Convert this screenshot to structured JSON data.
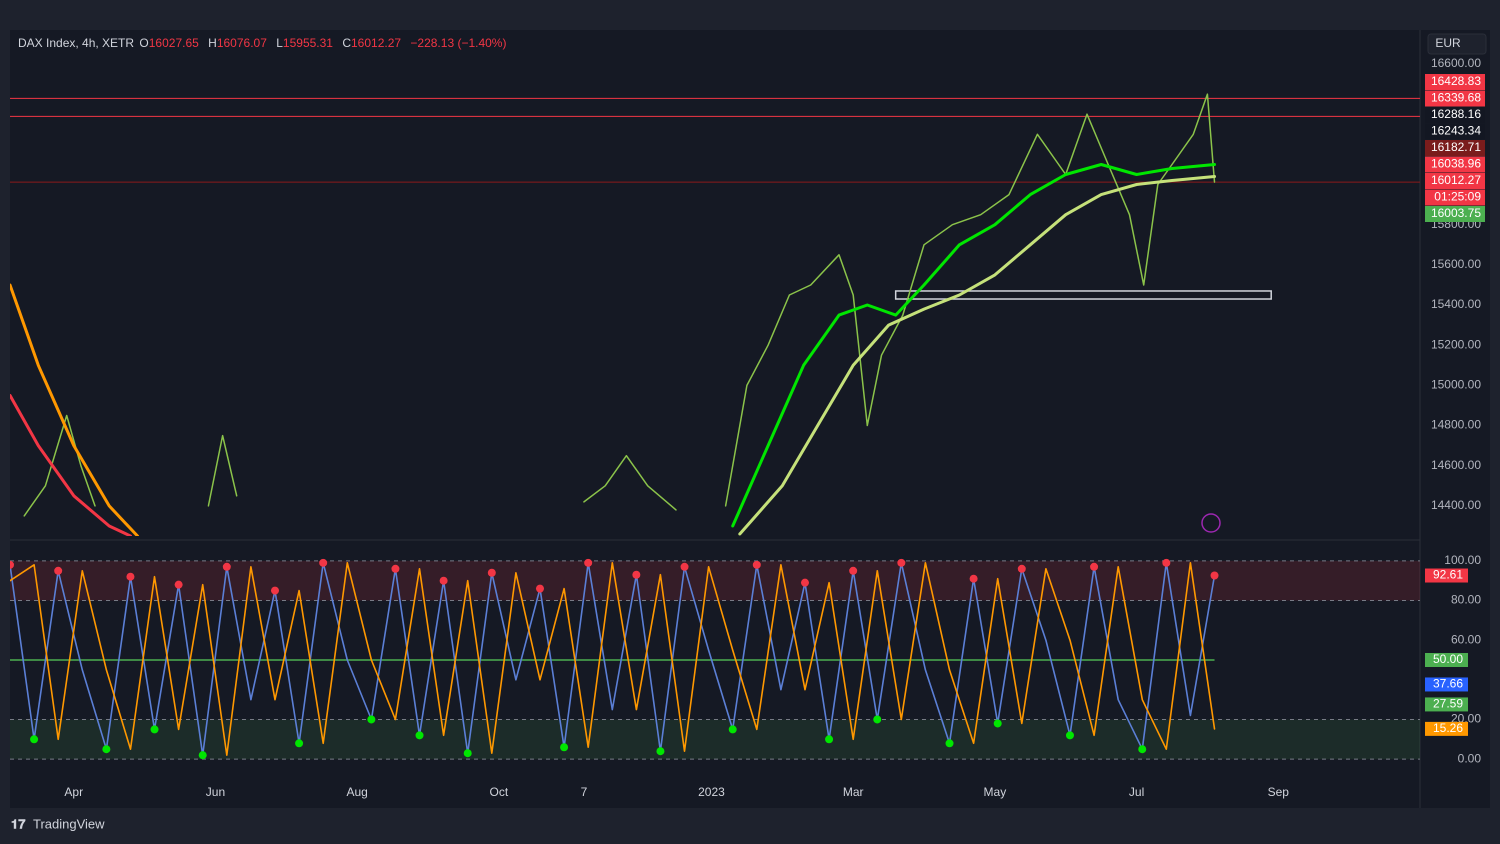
{
  "header": {
    "symbol": "DAX Index, 4h, XETR",
    "o_label": "O",
    "open": "16027.65",
    "h_label": "H",
    "high": "16076.07",
    "l_label": "L",
    "low": "15955.31",
    "c_label": "C",
    "close": "16012.27",
    "change": "−228.13 (−1.40%)"
  },
  "currency": "EUR",
  "footer": "TradingView",
  "chart_data": [
    {
      "type": "line",
      "xlim": [
        0.1,
        20
      ],
      "xticks": [
        {
          "value": 1,
          "label": "Apr"
        },
        {
          "value": 3,
          "label": "Jun"
        },
        {
          "value": 5,
          "label": "Aug"
        },
        {
          "value": 7,
          "label": "Oct"
        },
        {
          "value": 8.2,
          "label": "7"
        },
        {
          "value": 10,
          "label": "2023"
        },
        {
          "value": 12,
          "label": "Mar"
        },
        {
          "value": 14,
          "label": "May"
        },
        {
          "value": 16,
          "label": "Jul"
        },
        {
          "value": 18,
          "label": "Sep"
        }
      ],
      "ylim": [
        14250,
        16645
      ],
      "yticks": [
        {
          "value": 14400,
          "label": "14400.00"
        },
        {
          "value": 14600,
          "label": "14600.00"
        },
        {
          "value": 14800,
          "label": "14800.00"
        },
        {
          "value": 15000,
          "label": "15000.00"
        },
        {
          "value": 15200,
          "label": "15200.00"
        },
        {
          "value": 15400,
          "label": "15400.00"
        },
        {
          "value": 15600,
          "label": "15600.00"
        },
        {
          "value": 15800,
          "label": "15800.00"
        },
        {
          "value": 16600,
          "label": "16600.00"
        }
      ],
      "series": [
        {
          "color": "#8bc34a",
          "x": [
            0.3,
            0.6,
            0.9,
            1.1,
            1.3,
            1.5,
            2.9,
            3.1,
            3.3,
            3.5,
            8.2,
            8.5,
            8.8,
            9.1,
            9.5,
            9.8,
            10.2,
            10.5,
            10.8,
            11.1,
            11.4,
            11.8,
            12.0,
            12.2,
            12.4,
            12.7,
            13.0,
            13.4,
            13.8,
            14.2,
            14.6,
            15.0,
            15.3,
            15.6,
            15.9,
            16.1,
            16.3,
            16.5,
            16.8,
            17.0,
            17.1
          ],
          "values": [
            14350,
            14500,
            14850,
            14600,
            14400,
            null,
            14400,
            14750,
            14450,
            null,
            14420,
            14500,
            14650,
            14500,
            14380,
            null,
            14400,
            15000,
            15200,
            15450,
            15500,
            15650,
            15450,
            14800,
            15150,
            15350,
            15700,
            15800,
            15850,
            15950,
            16250,
            16050,
            16350,
            16100,
            15850,
            15500,
            16000,
            16100,
            16250,
            16450,
            16012.27
          ]
        },
        {
          "color": "#c5e17a",
          "x": [
            10.4,
            11,
            11.5,
            12,
            12.5,
            13,
            13.5,
            14,
            14.5,
            15,
            15.5,
            16,
            16.5,
            17.1
          ],
          "values": [
            14260,
            14500,
            14800,
            15100,
            15300,
            15380,
            15450,
            15550,
            15700,
            15850,
            15950,
            16000,
            16020,
            16040
          ]
        },
        {
          "color": "#00e600",
          "x": [
            10.3,
            10.8,
            11.3,
            11.8,
            12.2,
            12.6,
            13,
            13.5,
            14,
            14.5,
            15,
            15.5,
            16,
            16.5,
            17.1
          ],
          "values": [
            14300,
            14700,
            15100,
            15350,
            15400,
            15350,
            15500,
            15700,
            15800,
            15950,
            16050,
            16100,
            16050,
            16080,
            16100
          ]
        },
        {
          "color": "#ff9800",
          "x": [
            0.1,
            0.5,
            1,
            1.5,
            1.9
          ],
          "values": [
            15500,
            15100,
            14700,
            14400,
            14250
          ]
        },
        {
          "color": "#f23645",
          "x": [
            0.1,
            0.5,
            1,
            1.5,
            1.8
          ],
          "values": [
            14950,
            14700,
            14450,
            14300,
            14250
          ]
        }
      ],
      "hlines": [
        16428.83,
        16339.68,
        16012.27
      ],
      "zone": {
        "x": [
          12.6,
          17.9
        ],
        "y": [
          15430,
          15470
        ]
      },
      "price_labels": [
        {
          "label": "16428.83",
          "color": "#f23645"
        },
        {
          "label": "16339.68",
          "color": "#f23645"
        },
        {
          "label": "16288.16",
          "color": "#131722"
        },
        {
          "label": "16243.34",
          "color": "#131722"
        },
        {
          "label": "16182.71",
          "color": "#7a1c1c"
        },
        {
          "label": "16038.96",
          "color": "#f23645"
        },
        {
          "label": "16012.27",
          "color": "#f23645"
        },
        {
          "label": "01:25:09",
          "color": "#f23645"
        },
        {
          "label": "16003.75",
          "color": "#4caf50"
        }
      ]
    },
    {
      "type": "line",
      "xlim": [
        0.1,
        20
      ],
      "ylim": [
        -8,
        108
      ],
      "yticks": [
        {
          "value": 0,
          "label": "0.00"
        },
        {
          "value": 20,
          "label": "20.00"
        },
        {
          "value": 60,
          "label": "60.00"
        },
        {
          "value": 80,
          "label": "80.00"
        },
        {
          "value": 100,
          "label": "100.00"
        }
      ],
      "levels": [
        0,
        20,
        80,
        100
      ],
      "midline": 50,
      "series": [
        {
          "color": "#5b7fd6",
          "x": [
            0.1,
            0.44,
            0.78,
            1.12,
            1.46,
            1.8,
            2.14,
            2.48,
            2.82,
            3.16,
            3.5,
            3.84,
            4.18,
            4.52,
            4.86,
            5.2,
            5.54,
            5.88,
            6.22,
            6.56,
            6.9,
            7.24,
            7.58,
            7.92,
            8.26,
            8.6,
            8.94,
            9.28,
            9.62,
            9.96,
            10.3,
            10.64,
            10.98,
            11.32,
            11.66,
            12,
            12.34,
            12.68,
            13.02,
            13.36,
            13.7,
            14.04,
            14.38,
            14.72,
            15.06,
            15.4,
            15.74,
            16.08,
            16.42,
            16.76,
            17.1
          ],
          "values": [
            98,
            10,
            95,
            45,
            5,
            92,
            15,
            88,
            2,
            97,
            30,
            85,
            8,
            99,
            50,
            20,
            96,
            12,
            90,
            3,
            94,
            40,
            86,
            6,
            99,
            25,
            93,
            4,
            97,
            55,
            15,
            98,
            35,
            89,
            10,
            95,
            20,
            99,
            45,
            8,
            91,
            18,
            96,
            60,
            12,
            97,
            30,
            5,
            99,
            22,
            92.61
          ]
        },
        {
          "color": "#ff9800",
          "x": [
            0.1,
            0.44,
            0.78,
            1.12,
            1.46,
            1.8,
            2.14,
            2.48,
            2.82,
            3.16,
            3.5,
            3.84,
            4.18,
            4.52,
            4.86,
            5.2,
            5.54,
            5.88,
            6.22,
            6.56,
            6.9,
            7.24,
            7.58,
            7.92,
            8.26,
            8.6,
            8.94,
            9.28,
            9.62,
            9.96,
            10.3,
            10.64,
            10.98,
            11.32,
            11.66,
            12,
            12.34,
            12.68,
            13.02,
            13.36,
            13.7,
            14.04,
            14.38,
            14.72,
            15.06,
            15.4,
            15.74,
            16.08,
            16.42,
            16.76,
            17.1
          ],
          "values": [
            90,
            98,
            10,
            95,
            45,
            5,
            92,
            15,
            88,
            2,
            97,
            30,
            85,
            8,
            99,
            50,
            20,
            96,
            12,
            90,
            3,
            94,
            40,
            86,
            6,
            99,
            25,
            93,
            4,
            97,
            55,
            15,
            98,
            35,
            89,
            10,
            95,
            20,
            99,
            45,
            8,
            91,
            18,
            96,
            60,
            12,
            97,
            30,
            5,
            99,
            15.26
          ]
        }
      ],
      "value_labels": [
        {
          "value": 92.61,
          "label": "92.61",
          "color": "#f23645"
        },
        {
          "value": 50,
          "label": "50.00",
          "color": "#4caf50"
        },
        {
          "value": 37.66,
          "label": "37.66",
          "color": "#2962ff"
        },
        {
          "value": 27.59,
          "label": "27.59",
          "color": "#4caf50"
        },
        {
          "value": 15.26,
          "label": "15.26",
          "color": "#ff9800"
        }
      ]
    }
  ]
}
